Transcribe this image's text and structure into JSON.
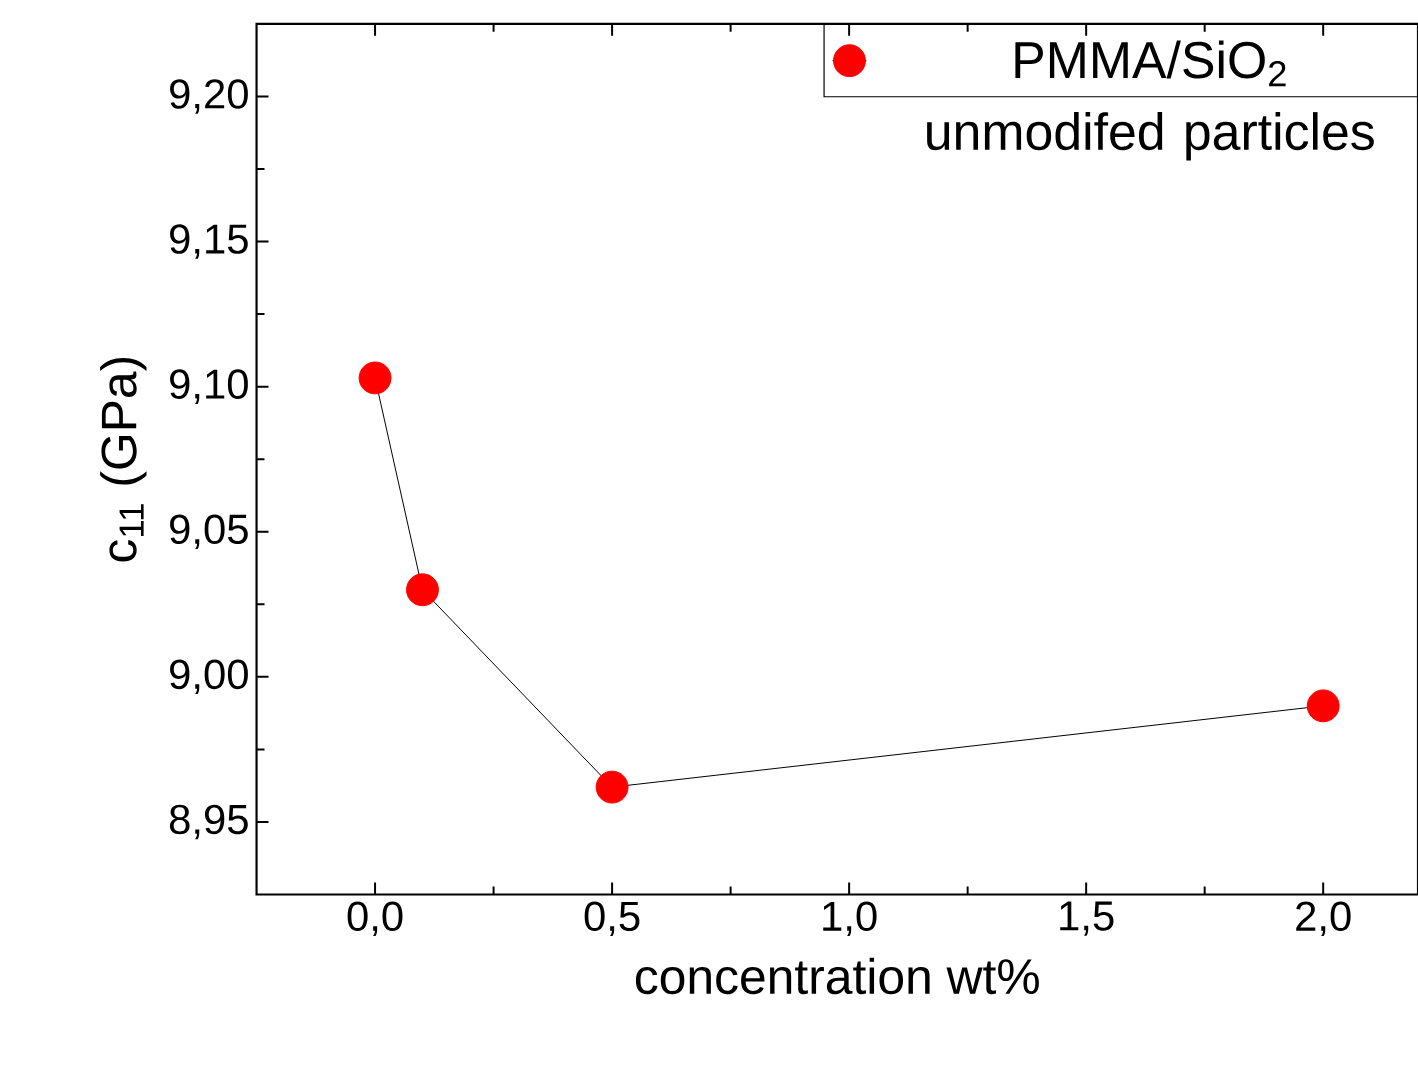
{
  "chart_data": {
    "type": "line",
    "xlabel": "concentration wt%",
    "ylabel": "c$_{11}$ (GPa)",
    "x": [
      0,
      0.1,
      0.5,
      2.0
    ],
    "series": [
      {
        "name": "PMMA/SiO$_{2}$ unmodifed particles",
        "color": "#ff0000",
        "values": [
          9.103,
          9.03,
          8.962,
          8.99
        ]
      }
    ],
    "xlim": [
      -0.25,
      2.2
    ],
    "ylim": [
      8.925,
      9.225
    ],
    "xticks": [
      {
        "value": 0,
        "label": "0,0"
      },
      {
        "value": 0.5,
        "label": "0,5"
      },
      {
        "value": 1.0,
        "label": "1,0"
      },
      {
        "value": 1.5,
        "label": "1,5"
      },
      {
        "value": 2.0,
        "label": "2,0"
      }
    ],
    "yticks": [
      {
        "value": 8.95,
        "label": "8,95"
      },
      {
        "value": 9.0,
        "label": "9,00"
      },
      {
        "value": 9.05,
        "label": "9,05"
      },
      {
        "value": 9.1,
        "label": "9,10"
      },
      {
        "value": 9.15,
        "label": "9,15"
      },
      {
        "value": 9.2,
        "label": "9,20"
      }
    ],
    "marker": "circle",
    "legend": "top right",
    "grid": false
  }
}
